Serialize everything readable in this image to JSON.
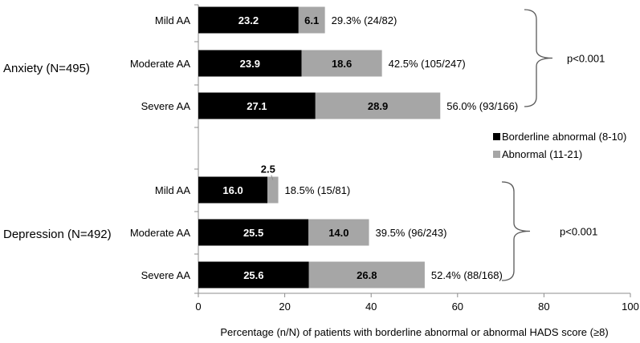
{
  "chart_data": {
    "type": "bar",
    "stacked": true,
    "orientation": "horizontal",
    "xlabel": "Percentage (n/N) of patients with borderline abnormal or abnormal HADS score (≥8)",
    "xlim": [
      0,
      100
    ],
    "xticks": [
      "0",
      "20",
      "40",
      "60",
      "80",
      "100"
    ],
    "series": [
      {
        "name": "Borderline abnormal (8-10)",
        "color": "#000000"
      },
      {
        "name": "Abnormal (11-21)",
        "color": "#a6a6a6"
      }
    ],
    "groups": [
      {
        "label": "Anxiety (N=495)",
        "pvalue": "p<0.001",
        "bars": [
          {
            "category": "Mild AA",
            "borderline": 23.2,
            "abnormal": 6.1,
            "borderline_label": "23.2",
            "abnormal_label": "6.1",
            "total_label": "29.3% (24/82)"
          },
          {
            "category": "Moderate AA",
            "borderline": 23.9,
            "abnormal": 18.6,
            "borderline_label": "23.9",
            "abnormal_label": "18.6",
            "total_label": "42.5% (105/247)"
          },
          {
            "category": "Severe AA",
            "borderline": 27.1,
            "abnormal": 28.9,
            "borderline_label": "27.1",
            "abnormal_label": "28.9",
            "total_label": "56.0% (93/166)"
          }
        ]
      },
      {
        "label": "Depression (N=492)",
        "pvalue": "p<0.001",
        "bars": [
          {
            "category": "Mild AA",
            "borderline": 16.0,
            "abnormal": 2.5,
            "borderline_label": "16.0",
            "abnormal_label": "2.5",
            "total_label": "18.5% (15/81)"
          },
          {
            "category": "Moderate AA",
            "borderline": 25.5,
            "abnormal": 14.0,
            "borderline_label": "25.5",
            "abnormal_label": "14.0",
            "total_label": "39.5% (96/243)"
          },
          {
            "category": "Severe AA",
            "borderline": 25.6,
            "abnormal": 26.8,
            "borderline_label": "25.6",
            "abnormal_label": "26.8",
            "total_label": "52.4% (88/168)"
          }
        ]
      }
    ]
  }
}
